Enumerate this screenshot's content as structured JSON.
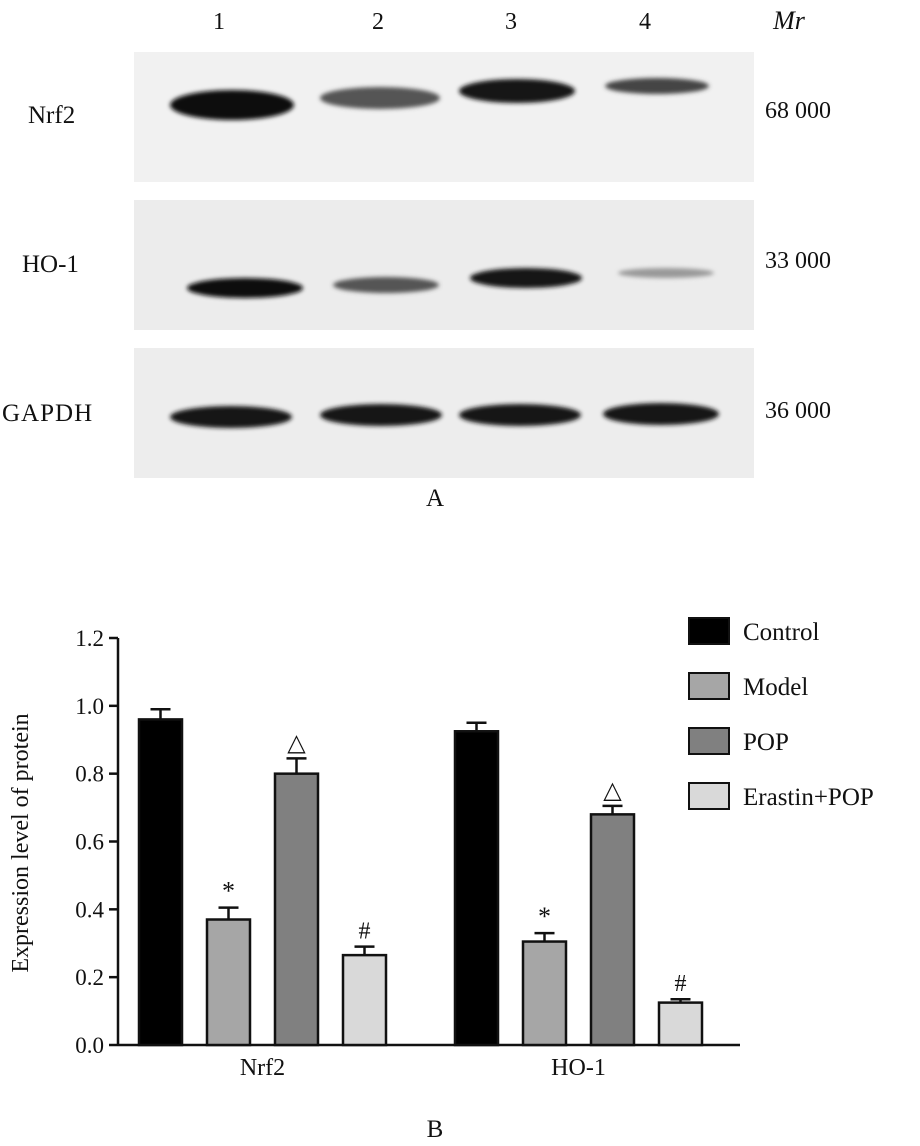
{
  "blot": {
    "lanes": [
      "1",
      "2",
      "3",
      "4"
    ],
    "mr_header": "Mr",
    "rows": [
      {
        "label": "Nrf2",
        "mr": "68 000",
        "intensity": [
          0.95,
          0.55,
          0.9,
          0.55
        ]
      },
      {
        "label": "HO-1",
        "mr": "33 000",
        "intensity": [
          0.9,
          0.55,
          0.85,
          0.25
        ]
      },
      {
        "label": "GAPDH",
        "mr": "36 000",
        "intensity": [
          0.92,
          0.92,
          0.92,
          0.92
        ]
      }
    ],
    "panel_label": "A"
  },
  "chart_data": {
    "type": "bar",
    "categories": [
      "Nrf2",
      "HO-1"
    ],
    "ylabel": "Expression level of protein",
    "xlabel": "",
    "ylim": [
      0,
      1.2
    ],
    "yticks": [
      "0.0",
      "0.2",
      "0.4",
      "0.6",
      "0.8",
      "1.0",
      "1.2"
    ],
    "legend_position": "top-right",
    "series": [
      {
        "name": "Control",
        "color": "#000000",
        "values": [
          0.96,
          0.925
        ],
        "errors": [
          0.03,
          0.025
        ],
        "marks": [
          "",
          ""
        ]
      },
      {
        "name": "Model",
        "color": "#a6a6a6",
        "values": [
          0.37,
          0.305
        ],
        "errors": [
          0.035,
          0.025
        ],
        "marks": [
          "*",
          "*"
        ]
      },
      {
        "name": "POP",
        "color": "#808080",
        "values": [
          0.8,
          0.68
        ],
        "errors": [
          0.045,
          0.025
        ],
        "marks": [
          "△",
          "△"
        ]
      },
      {
        "name": "Erastin+POP",
        "color": "#d9d9d9",
        "values": [
          0.265,
          0.125
        ],
        "errors": [
          0.025,
          0.01
        ],
        "marks": [
          "#",
          "#"
        ]
      }
    ],
    "panel_label": "B"
  }
}
